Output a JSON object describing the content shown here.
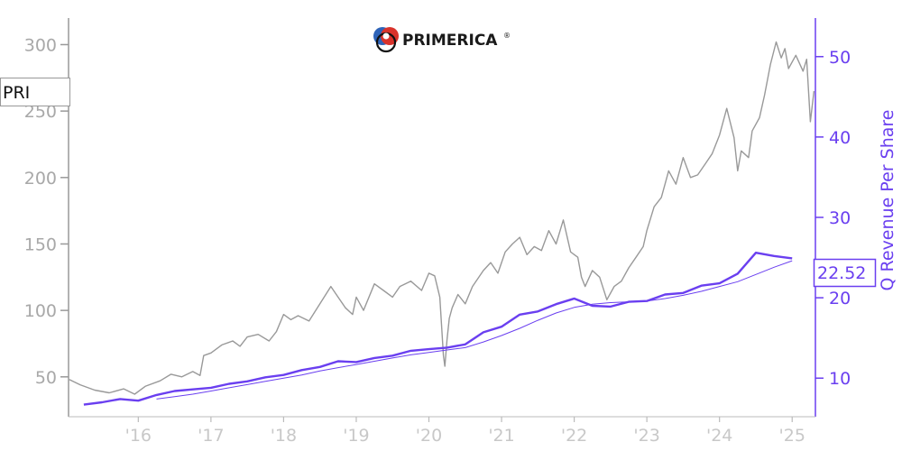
{
  "logo": {
    "text": "PRIMERICA",
    "trademark": "®"
  },
  "ticker_label": "PRI",
  "last_value_label": "22.52",
  "colors": {
    "price": "#999999",
    "revenue": "#6a3ff0",
    "left_axis": "#999999",
    "x_labels": "#c8c8c8"
  },
  "chart_data": {
    "type": "line",
    "title": "",
    "xlabel": "",
    "ylabel_left": "",
    "ylabel_right": "Q Revenue Per Share",
    "x_ticks": [
      {
        "x": 2016,
        "label": "'16"
      },
      {
        "x": 2017,
        "label": "'17"
      },
      {
        "x": 2018,
        "label": "'18"
      },
      {
        "x": 2019,
        "label": "'19"
      },
      {
        "x": 2020,
        "label": "'20"
      },
      {
        "x": 2021,
        "label": "'21"
      },
      {
        "x": 2022,
        "label": "'22"
      },
      {
        "x": 2023,
        "label": "'23"
      },
      {
        "x": 2024,
        "label": "'24"
      },
      {
        "x": 2025,
        "label": "'25"
      }
    ],
    "xlim": [
      2015.04,
      2025.32
    ],
    "ylim_left": [
      20,
      320
    ],
    "yticks_left": [
      50,
      100,
      150,
      200,
      250,
      300
    ],
    "ylim_right": [
      5.2,
      54.8
    ],
    "yticks_right": [
      10,
      20,
      30,
      40,
      50
    ],
    "series": [
      {
        "name": "PRI",
        "axis": "left",
        "x": [
          2015.05,
          2015.2,
          2015.4,
          2015.6,
          2015.8,
          2015.95,
          2016.1,
          2016.3,
          2016.45,
          2016.6,
          2016.75,
          2016.85,
          2016.9,
          2017.0,
          2017.15,
          2017.3,
          2017.4,
          2017.5,
          2017.65,
          2017.8,
          2017.9,
          2018.0,
          2018.1,
          2018.2,
          2018.35,
          2018.5,
          2018.65,
          2018.75,
          2018.85,
          2018.95,
          2019.0,
          2019.1,
          2019.25,
          2019.4,
          2019.5,
          2019.6,
          2019.75,
          2019.9,
          2020.0,
          2020.08,
          2020.15,
          2020.2,
          2020.22,
          2020.25,
          2020.28,
          2020.32,
          2020.4,
          2020.5,
          2020.6,
          2020.75,
          2020.85,
          2020.95,
          2021.05,
          2021.15,
          2021.25,
          2021.35,
          2021.45,
          2021.55,
          2021.65,
          2021.75,
          2021.85,
          2021.95,
          2022.05,
          2022.1,
          2022.15,
          2022.25,
          2022.35,
          2022.45,
          2022.55,
          2022.65,
          2022.75,
          2022.85,
          2022.95,
          2023.0,
          2023.1,
          2023.2,
          2023.3,
          2023.4,
          2023.5,
          2023.6,
          2023.7,
          2023.8,
          2023.9,
          2024.0,
          2024.1,
          2024.2,
          2024.25,
          2024.3,
          2024.4,
          2024.45,
          2024.55,
          2024.62,
          2024.7,
          2024.78,
          2024.85,
          2024.9,
          2024.95,
          2025.05,
          2025.15,
          2025.2,
          2025.25,
          2025.3
        ],
        "values": [
          48,
          44,
          40,
          38,
          41,
          37,
          43,
          47,
          52,
          50,
          54,
          51,
          66,
          68,
          74,
          77,
          73,
          80,
          82,
          77,
          84,
          97,
          93,
          96,
          92,
          105,
          118,
          110,
          102,
          97,
          110,
          100,
          120,
          114,
          110,
          118,
          122,
          115,
          128,
          126,
          110,
          66,
          58,
          78,
          94,
          102,
          112,
          105,
          118,
          130,
          136,
          128,
          144,
          150,
          155,
          142,
          148,
          145,
          160,
          150,
          168,
          144,
          140,
          125,
          118,
          130,
          125,
          108,
          118,
          122,
          132,
          140,
          148,
          160,
          178,
          185,
          205,
          195,
          215,
          200,
          202,
          210,
          218,
          232,
          252,
          230,
          205,
          220,
          215,
          235,
          245,
          262,
          285,
          302,
          290,
          297,
          282,
          292,
          280,
          289,
          242,
          265
        ]
      },
      {
        "name": "Q Revenue Per Share",
        "axis": "right",
        "x": [
          2015.25,
          2015.5,
          2015.75,
          2016.0,
          2016.25,
          2016.5,
          2016.75,
          2017.0,
          2017.25,
          2017.5,
          2017.75,
          2018.0,
          2018.25,
          2018.5,
          2018.75,
          2019.0,
          2019.25,
          2019.5,
          2019.75,
          2020.0,
          2020.25,
          2020.5,
          2020.75,
          2021.0,
          2021.25,
          2021.5,
          2021.75,
          2022.0,
          2022.25,
          2022.5,
          2022.75,
          2023.0,
          2023.25,
          2023.5,
          2023.75,
          2024.0,
          2024.25,
          2024.5,
          2024.75,
          2025.0
        ],
        "values": [
          6.7,
          7.0,
          7.4,
          7.2,
          7.9,
          8.4,
          8.6,
          8.8,
          9.3,
          9.6,
          10.1,
          10.4,
          11.0,
          11.4,
          12.1,
          12.0,
          12.5,
          12.8,
          13.4,
          13.6,
          13.8,
          14.2,
          15.7,
          16.4,
          17.9,
          18.3,
          19.2,
          19.9,
          19.0,
          18.9,
          19.5,
          19.6,
          20.4,
          20.6,
          21.5,
          21.8,
          23.0,
          25.6,
          25.2,
          24.9
        ]
      },
      {
        "name": "",
        "axis": "right",
        "x": [
          2016.25,
          2016.5,
          2016.75,
          2017.0,
          2017.25,
          2017.5,
          2017.75,
          2018.0,
          2018.25,
          2018.5,
          2018.75,
          2019.0,
          2019.25,
          2019.5,
          2019.75,
          2020.0,
          2020.25,
          2020.5,
          2020.75,
          2021.0,
          2021.25,
          2021.5,
          2021.75,
          2022.0,
          2022.25,
          2022.5,
          2022.75,
          2023.0,
          2023.25,
          2023.5,
          2023.75,
          2024.0,
          2024.25,
          2024.5,
          2024.75,
          2025.0
        ],
        "values": [
          7.4,
          7.7,
          8.0,
          8.4,
          8.8,
          9.2,
          9.6,
          10.0,
          10.4,
          10.9,
          11.3,
          11.7,
          12.1,
          12.5,
          12.9,
          13.2,
          13.5,
          13.8,
          14.5,
          15.3,
          16.2,
          17.2,
          18.1,
          18.8,
          19.2,
          19.4,
          19.5,
          19.6,
          19.9,
          20.3,
          20.8,
          21.4,
          22.0,
          22.9,
          23.8,
          24.6
        ]
      }
    ]
  }
}
